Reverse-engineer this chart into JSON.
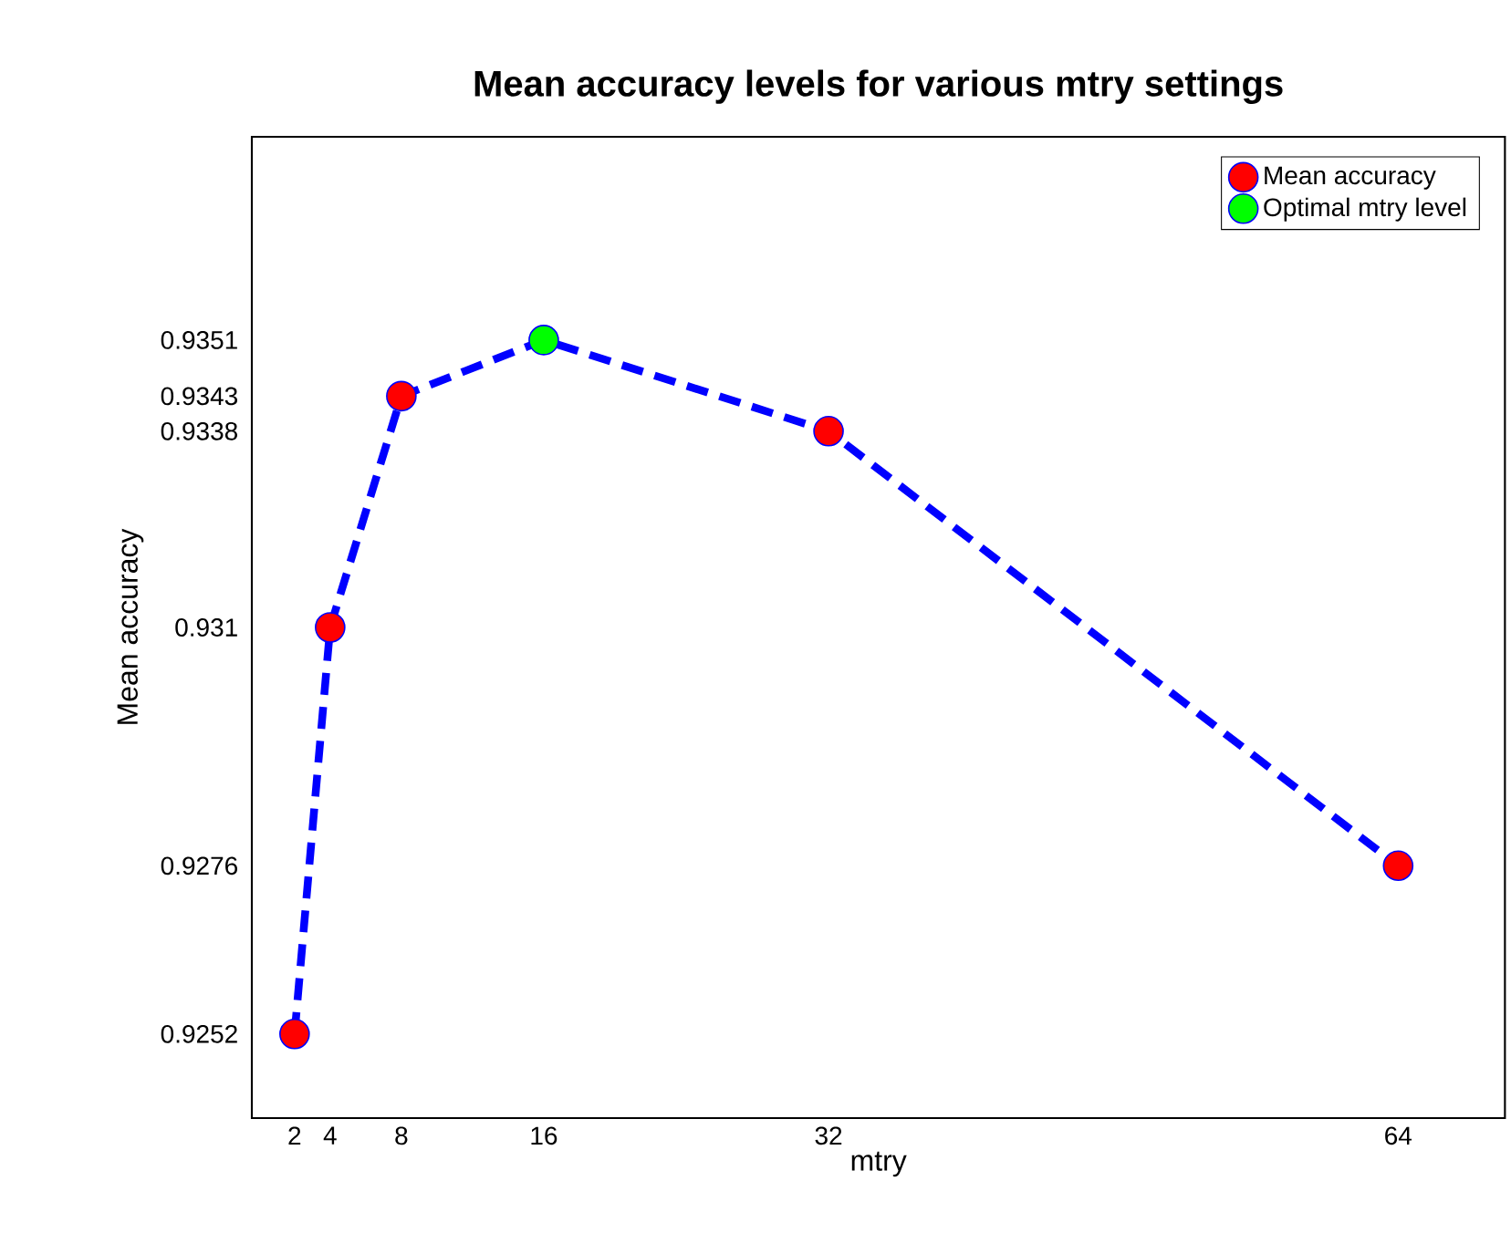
{
  "chart_data": {
    "type": "line",
    "title": "Mean accuracy levels for various mtry settings",
    "xlabel": "mtry",
    "ylabel": "Mean accuracy",
    "x": [
      2,
      4,
      8,
      16,
      32,
      64
    ],
    "series": [
      {
        "type": "line",
        "color": "#0000ff",
        "line_style": "dashed",
        "values": [
          0.9252,
          0.931,
          0.9343,
          0.9351,
          0.9338,
          0.9276
        ]
      },
      {
        "type": "scatter",
        "name": "Mean accuracy",
        "color": "#ff0000",
        "marker": "circle",
        "values": [
          0.9252,
          0.931,
          0.9343,
          null,
          0.9338,
          0.9276
        ]
      },
      {
        "type": "scatter",
        "name": "Optimal mtry level",
        "color": "#00ff00",
        "marker": "circle",
        "values": [
          null,
          null,
          null,
          0.9351,
          null,
          null
        ]
      }
    ],
    "xlim": [
      -0.4,
      70
    ],
    "ylim": [
      0.924,
      0.938
    ],
    "xticks": [
      2,
      4,
      8,
      16,
      32,
      64
    ],
    "yticks": [
      0.9252,
      0.9276,
      0.931,
      0.9338,
      0.9343,
      0.9351
    ],
    "grid": false,
    "legend": "top right"
  }
}
